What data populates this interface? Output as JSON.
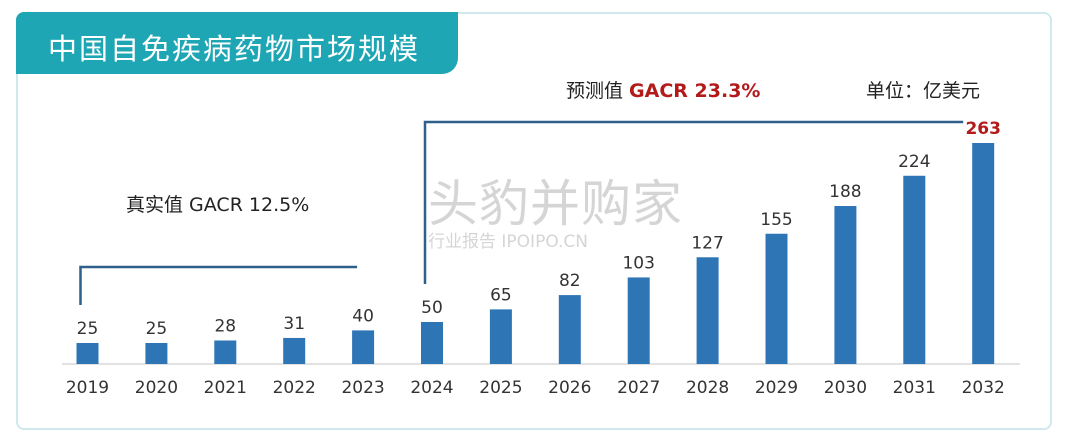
{
  "header": {
    "title": "中国自免疾病药物市场规模"
  },
  "annotations": {
    "unit": "单位：亿美元",
    "forecast_prefix": "预测值 ",
    "forecast_rate": "GACR 23.3%",
    "actual_label": "真实值 GACR 12.5%"
  },
  "watermark": {
    "main": "头豹并购家",
    "sub": "行业报告 IPOIPO.CN"
  },
  "colors": {
    "bar": "#2e75b6",
    "accent": "#1ea6b4",
    "highlight": "#b31b1b"
  },
  "chart_data": {
    "type": "bar",
    "categories": [
      "2019",
      "2020",
      "2021",
      "2022",
      "2023",
      "2024",
      "2025",
      "2026",
      "2027",
      "2028",
      "2029",
      "2030",
      "2031",
      "2032"
    ],
    "values": [
      25,
      25,
      28,
      31,
      40,
      50,
      65,
      82,
      103,
      127,
      155,
      188,
      224,
      263
    ],
    "highlight_index": 13,
    "ylim": [
      0,
      263
    ],
    "grid": false,
    "bracket_actual": [
      "2019",
      "2023"
    ],
    "bracket_forecast": [
      "2024",
      "2032"
    ]
  }
}
